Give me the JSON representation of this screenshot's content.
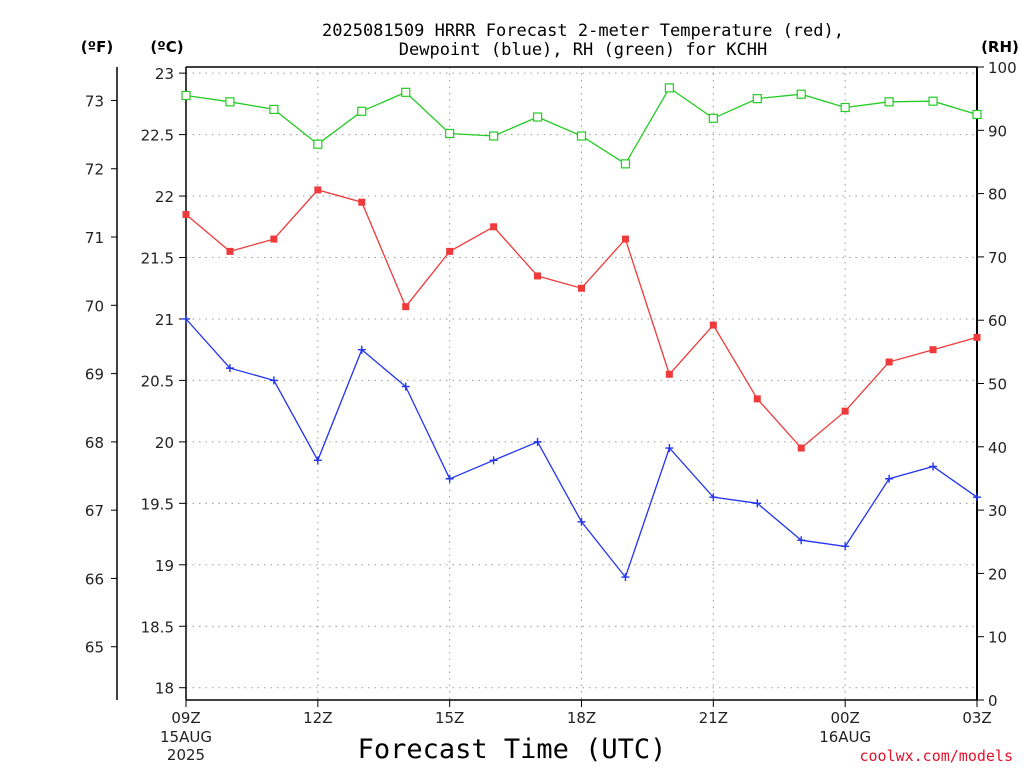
{
  "chart_data": {
    "type": "line",
    "title_line1": "2025081509 HRRR Forecast 2-meter Temperature (red),",
    "title_line2": "Dewpoint (blue), RH (green) for KCHH",
    "xlabel": "Forecast Time (UTC)",
    "credit": "coolwx.com/models",
    "units": {
      "fahrenheit": "(ºF)",
      "celsius": "(ºC)",
      "rh": "(RH)"
    },
    "x_hours": [
      9,
      10,
      11,
      12,
      13,
      14,
      15,
      16,
      17,
      18,
      19,
      20,
      21,
      22,
      23,
      24,
      25,
      26,
      27
    ],
    "xlim": [
      9,
      27
    ],
    "x_ticks": [
      {
        "x": 9,
        "label": "09Z",
        "sub1": "15AUG",
        "sub2": "2025"
      },
      {
        "x": 12,
        "label": "12Z"
      },
      {
        "x": 15,
        "label": "15Z"
      },
      {
        "x": 18,
        "label": "18Z"
      },
      {
        "x": 21,
        "label": "21Z"
      },
      {
        "x": 24,
        "label": "00Z",
        "sub1": "16AUG"
      },
      {
        "x": 27,
        "label": "03Z"
      }
    ],
    "y_celsius_lim": [
      17.9,
      23.05
    ],
    "y_celsius_ticks": [
      "18",
      "18.5",
      "19",
      "19.5",
      "20",
      "20.5",
      "21",
      "21.5",
      "22",
      "22.5",
      "23"
    ],
    "y_fahrenheit_ticks": [
      "65",
      "66",
      "67",
      "68",
      "69",
      "70",
      "71",
      "72",
      "73"
    ],
    "y_rh_lim": [
      0,
      100
    ],
    "y_rh_ticks": [
      "0",
      "10",
      "20",
      "30",
      "40",
      "50",
      "60",
      "70",
      "80",
      "90",
      "100"
    ],
    "grid": true,
    "series": [
      {
        "name": "Temperature (red)",
        "axis": "celsius",
        "color": "#ee3a3a",
        "marker": "filled-square",
        "values": [
          21.85,
          21.55,
          21.65,
          22.05,
          21.95,
          21.1,
          21.55,
          21.75,
          21.35,
          21.25,
          21.65,
          20.55,
          20.95,
          20.35,
          19.95,
          20.25,
          20.65,
          20.75,
          20.85
        ]
      },
      {
        "name": "Dewpoint (blue)",
        "axis": "celsius",
        "color": "#2233ee",
        "marker": "plus",
        "values": [
          21.0,
          20.6,
          20.5,
          19.85,
          20.75,
          20.45,
          19.7,
          19.85,
          20.0,
          19.35,
          18.9,
          19.95,
          19.55,
          19.5,
          19.2,
          19.15,
          19.7,
          19.8,
          19.55
        ]
      },
      {
        "name": "RH (green)",
        "axis": "rh",
        "color": "#22cc22",
        "marker": "open-square",
        "values": [
          95.5,
          94.5,
          93.3,
          87.8,
          93.0,
          96.0,
          89.5,
          89.1,
          92.1,
          89.1,
          84.7,
          96.7,
          91.9,
          95.0,
          95.7,
          93.6,
          94.5,
          94.6,
          92.5
        ]
      }
    ]
  }
}
